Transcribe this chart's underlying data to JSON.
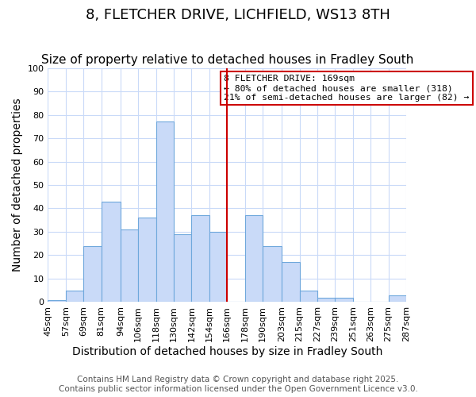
{
  "title": "8, FLETCHER DRIVE, LICHFIELD, WS13 8TH",
  "subtitle": "Size of property relative to detached houses in Fradley South",
  "xlabel": "Distribution of detached houses by size in Fradley South",
  "ylabel": "Number of detached properties",
  "bar_edges": [
    45,
    57,
    69,
    81,
    94,
    106,
    118,
    130,
    142,
    154,
    166,
    178,
    190,
    203,
    215,
    227,
    239,
    251,
    263,
    275,
    287
  ],
  "bar_heights": [
    1,
    5,
    24,
    43,
    31,
    36,
    77,
    29,
    37,
    30,
    0,
    37,
    24,
    17,
    5,
    2,
    2,
    0,
    0,
    3
  ],
  "bar_color": "#c9daf8",
  "bar_edgecolor": "#6fa8dc",
  "vline_x": 166,
  "vline_color": "#cc0000",
  "annotation_title": "8 FLETCHER DRIVE: 169sqm",
  "annotation_line1": "← 80% of detached houses are smaller (318)",
  "annotation_line2": "21% of semi-detached houses are larger (82) →",
  "annotation_box_edgecolor": "#cc0000",
  "xlim": [
    45,
    287
  ],
  "ylim": [
    0,
    100
  ],
  "yticks": [
    0,
    10,
    20,
    30,
    40,
    50,
    60,
    70,
    80,
    90,
    100
  ],
  "xtick_labels": [
    "45sqm",
    "57sqm",
    "69sqm",
    "81sqm",
    "94sqm",
    "106sqm",
    "118sqm",
    "130sqm",
    "142sqm",
    "154sqm",
    "166sqm",
    "178sqm",
    "190sqm",
    "203sqm",
    "215sqm",
    "227sqm",
    "239sqm",
    "251sqm",
    "263sqm",
    "275sqm",
    "287sqm"
  ],
  "footnote1": "Contains HM Land Registry data © Crown copyright and database right 2025.",
  "footnote2": "Contains public sector information licensed under the Open Government Licence v3.0.",
  "bg_color": "#ffffff",
  "grid_color": "#c9daf8",
  "title_fontsize": 13,
  "subtitle_fontsize": 11,
  "axis_label_fontsize": 10,
  "tick_fontsize": 8,
  "footnote_fontsize": 7.5
}
